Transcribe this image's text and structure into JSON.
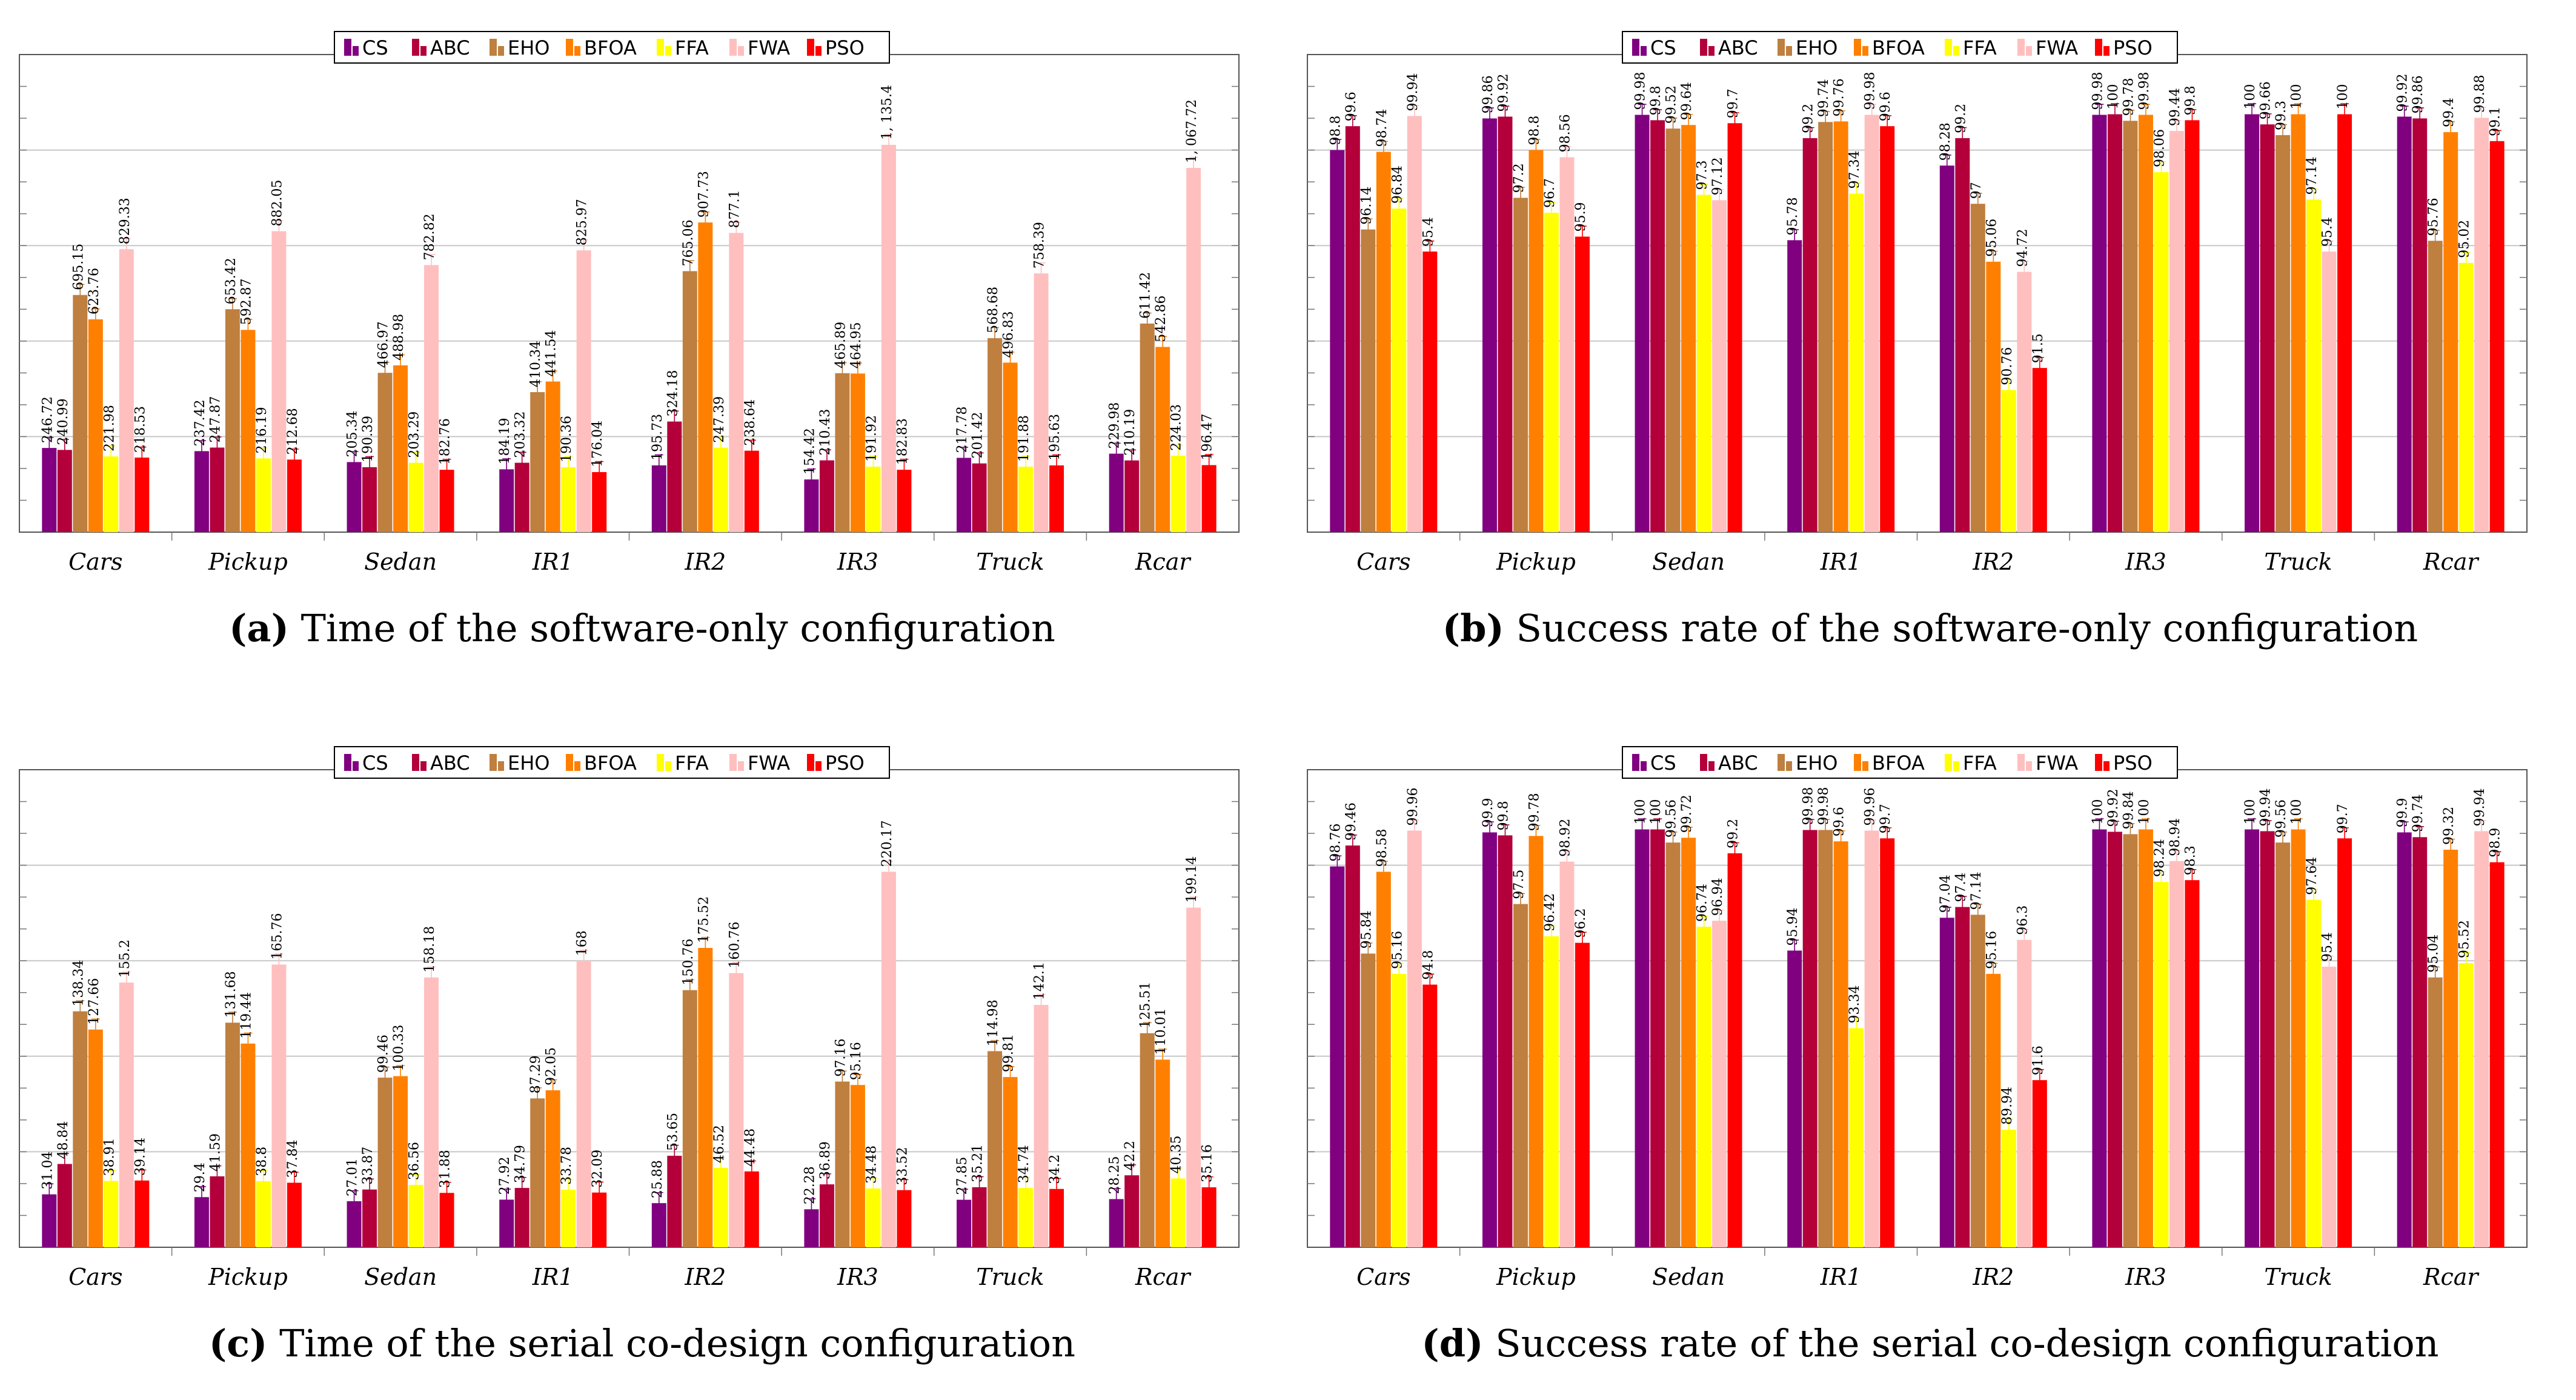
{
  "chart_data": [
    {
      "id": "a",
      "type": "bar",
      "caption_letter": "(a)",
      "caption_text": "Time of the software-only configuration",
      "categories": [
        "Cars",
        "Pickup",
        "Sedan",
        "IR1",
        "IR2",
        "IR3",
        "Truck",
        "Rcar"
      ],
      "ylim": [
        0,
        1400
      ],
      "series": [
        {
          "name": "CS",
          "color": "#800080",
          "values": [
            246.72,
            237.42,
            205.34,
            184.19,
            195.73,
            154.42,
            217.78,
            229.98
          ],
          "labels": [
            "246.72",
            "237.42",
            "205.34",
            "184.19",
            "195.73",
            "154.42",
            "217.78",
            "229.98"
          ]
        },
        {
          "name": "ABC",
          "color": "#b3003b",
          "values": [
            240.99,
            247.87,
            190.39,
            203.32,
            324.18,
            210.43,
            201.42,
            210.19
          ],
          "labels": [
            "240.99",
            "247.87",
            "190.39",
            "203.32",
            "324.18",
            "210.43",
            "201.42",
            "210.19"
          ]
        },
        {
          "name": "EHO",
          "color": "#bf7f3f",
          "values": [
            695.15,
            653.42,
            466.97,
            410.34,
            765.06,
            465.89,
            568.68,
            611.42
          ],
          "labels": [
            "695.15",
            "653.42",
            "466.97",
            "410.34",
            "765.06",
            "465.89",
            "568.68",
            "611.42"
          ]
        },
        {
          "name": "BFOA",
          "color": "#ff8000",
          "values": [
            623.76,
            592.87,
            488.98,
            441.54,
            907.73,
            464.95,
            496.83,
            542.86
          ],
          "labels": [
            "623.76",
            "592.87",
            "488.98",
            "441.54",
            "907.73",
            "464.95",
            "496.83",
            "542.86"
          ]
        },
        {
          "name": "FFA",
          "color": "#ffff00",
          "values": [
            221.98,
            216.19,
            203.29,
            190.36,
            247.39,
            191.92,
            191.88,
            224.03
          ],
          "labels": [
            "221.98",
            "216.19",
            "203.29",
            "190.36",
            "247.39",
            "191.92",
            "191.88",
            "224.03"
          ]
        },
        {
          "name": "FWA",
          "color": "#ffbfbf",
          "values": [
            829.33,
            882.05,
            782.82,
            825.97,
            877.1,
            1135.4,
            758.39,
            1067.72
          ],
          "labels": [
            "829.33",
            "882.05",
            "782.82",
            "825.97",
            "877.1",
            "1, 135.4",
            "758.39",
            "1, 067.72"
          ]
        },
        {
          "name": "PSO",
          "color": "#ff0000",
          "values": [
            218.53,
            212.68,
            182.76,
            176.04,
            238.64,
            182.83,
            195.63,
            196.47
          ],
          "labels": [
            "218.53",
            "212.68",
            "182.76",
            "176.04",
            "238.64",
            "182.83",
            "195.63",
            "196.47"
          ]
        }
      ]
    },
    {
      "id": "b",
      "type": "bar",
      "caption_letter": "(b)",
      "caption_text": "Success rate of the software-only configuration",
      "categories": [
        "Cars",
        "Pickup",
        "Sedan",
        "IR1",
        "IR2",
        "IR3",
        "Truck",
        "Rcar"
      ],
      "ylim": [
        86,
        102
      ],
      "series": [
        {
          "name": "CS",
          "color": "#800080",
          "values": [
            98.8,
            99.86,
            99.98,
            95.78,
            98.28,
            99.98,
            100,
            99.92
          ],
          "labels": [
            "98.8",
            "99.86",
            "99.98",
            "95.78",
            "98.28",
            "99.98",
            "100",
            "99.92"
          ]
        },
        {
          "name": "ABC",
          "color": "#b3003b",
          "values": [
            99.6,
            99.92,
            99.8,
            99.2,
            99.2,
            100,
            99.66,
            99.86
          ],
          "labels": [
            "99.6",
            "99.92",
            "99.8",
            "99.2",
            "99.2",
            "100",
            "99.66",
            "99.86"
          ]
        },
        {
          "name": "EHO",
          "color": "#bf7f3f",
          "values": [
            96.14,
            97.2,
            99.52,
            99.74,
            97,
            99.78,
            99.3,
            95.76
          ],
          "labels": [
            "96.14",
            "97.2",
            "99.52",
            "99.74",
            "97",
            "99.78",
            "99.3",
            "95.76"
          ]
        },
        {
          "name": "BFOA",
          "color": "#ff8000",
          "values": [
            98.74,
            98.8,
            99.64,
            99.76,
            95.06,
            99.98,
            100,
            99.4
          ],
          "labels": [
            "98.74",
            "98.8",
            "99.64",
            "99.76",
            "95.06",
            "99.98",
            "100",
            "99.4"
          ]
        },
        {
          "name": "FFA",
          "color": "#ffff00",
          "values": [
            96.84,
            96.7,
            97.3,
            97.34,
            90.76,
            98.06,
            97.14,
            95.02
          ],
          "labels": [
            "96.84",
            "96.7",
            "97.3",
            "97.34",
            "90.76",
            "98.06",
            "97.14",
            "95.02"
          ]
        },
        {
          "name": "FWA",
          "color": "#ffbfbf",
          "values": [
            99.94,
            98.56,
            97.12,
            99.98,
            94.72,
            99.44,
            95.4,
            99.88
          ],
          "labels": [
            "99.94",
            "98.56",
            "97.12",
            "99.98",
            "94.72",
            "99.44",
            "95.4",
            "99.88"
          ]
        },
        {
          "name": "PSO",
          "color": "#ff0000",
          "values": [
            95.4,
            95.9,
            99.7,
            99.6,
            91.5,
            99.8,
            100,
            99.1
          ],
          "labels": [
            "95.4",
            "95.9",
            "99.7",
            "99.6",
            "91.5",
            "99.8",
            "100",
            "99.1"
          ]
        }
      ]
    },
    {
      "id": "c",
      "type": "bar",
      "caption_letter": "(c)",
      "caption_text": "Time of the serial co-design configuration",
      "categories": [
        "Cars",
        "Pickup",
        "Sedan",
        "IR1",
        "IR2",
        "IR3",
        "Truck",
        "Rcar"
      ],
      "ylim": [
        0,
        280
      ],
      "series": [
        {
          "name": "CS",
          "color": "#800080",
          "values": [
            31.04,
            29.4,
            27.01,
            27.92,
            25.88,
            22.28,
            27.85,
            28.25
          ],
          "labels": [
            "31.04",
            "29.4",
            "27.01",
            "27.92",
            "25.88",
            "22.28",
            "27.85",
            "28.25"
          ]
        },
        {
          "name": "ABC",
          "color": "#b3003b",
          "values": [
            48.84,
            41.59,
            33.87,
            34.79,
            53.65,
            36.89,
            35.21,
            42.2
          ],
          "labels": [
            "48.84",
            "41.59",
            "33.87",
            "34.79",
            "53.65",
            "36.89",
            "35.21",
            "42.2"
          ]
        },
        {
          "name": "EHO",
          "color": "#bf7f3f",
          "values": [
            138.34,
            131.68,
            99.46,
            87.29,
            150.76,
            97.16,
            114.98,
            125.51
          ],
          "labels": [
            "138.34",
            "131.68",
            "99.46",
            "87.29",
            "150.76",
            "97.16",
            "114.98",
            "125.51"
          ]
        },
        {
          "name": "BFOA",
          "color": "#ff8000",
          "values": [
            127.66,
            119.44,
            100.33,
            92.05,
            175.52,
            95.16,
            99.81,
            110.01
          ],
          "labels": [
            "127.66",
            "119.44",
            "100.33",
            "92.05",
            "175.52",
            "95.16",
            "99.81",
            "110.01"
          ]
        },
        {
          "name": "FFA",
          "color": "#ffff00",
          "values": [
            38.91,
            38.8,
            36.56,
            33.78,
            46.52,
            34.48,
            34.74,
            40.35
          ],
          "labels": [
            "38.91",
            "38.8",
            "36.56",
            "33.78",
            "46.52",
            "34.48",
            "34.74",
            "40.35"
          ]
        },
        {
          "name": "FWA",
          "color": "#ffbfbf",
          "values": [
            155.2,
            165.76,
            158.18,
            168,
            160.76,
            220.17,
            142.1,
            199.14
          ],
          "labels": [
            "155.2",
            "165.76",
            "158.18",
            "168",
            "160.76",
            "220.17",
            "142.1",
            "199.14"
          ]
        },
        {
          "name": "PSO",
          "color": "#ff0000",
          "values": [
            39.14,
            37.84,
            31.88,
            32.09,
            44.48,
            33.52,
            34.2,
            35.16
          ],
          "labels": [
            "39.14",
            "37.84",
            "31.88",
            "32.09",
            "44.48",
            "33.52",
            "34.2",
            "35.16"
          ]
        }
      ]
    },
    {
      "id": "d",
      "type": "bar",
      "caption_letter": "(d)",
      "caption_text": "Success rate of the serial co-design configuration",
      "categories": [
        "Cars",
        "Pickup",
        "Sedan",
        "IR1",
        "IR2",
        "IR3",
        "Truck",
        "Rcar"
      ],
      "ylim": [
        86,
        102
      ],
      "series": [
        {
          "name": "CS",
          "color": "#800080",
          "values": [
            98.76,
            99.9,
            100,
            95.94,
            97.04,
            100,
            100,
            99.9
          ],
          "labels": [
            "98.76",
            "99.9",
            "100",
            "95.94",
            "97.04",
            "100",
            "100",
            "99.9"
          ]
        },
        {
          "name": "ABC",
          "color": "#b3003b",
          "values": [
            99.46,
            99.8,
            100,
            99.98,
            97.4,
            99.92,
            99.94,
            99.74
          ],
          "labels": [
            "99.46",
            "99.8",
            "100",
            "99.98",
            "97.4",
            "99.92",
            "99.94",
            "99.74"
          ]
        },
        {
          "name": "EHO",
          "color": "#bf7f3f",
          "values": [
            95.84,
            97.5,
            99.56,
            99.98,
            97.14,
            99.84,
            99.56,
            95.04
          ],
          "labels": [
            "95.84",
            "97.5",
            "99.56",
            "99.98",
            "97.14",
            "99.84",
            "99.56",
            "95.04"
          ]
        },
        {
          "name": "BFOA",
          "color": "#ff8000",
          "values": [
            98.58,
            99.78,
            99.72,
            99.6,
            95.16,
            100,
            100,
            99.32
          ],
          "labels": [
            "98.58",
            "99.78",
            "99.72",
            "99.6",
            "95.16",
            "100",
            "100",
            "99.32"
          ]
        },
        {
          "name": "FFA",
          "color": "#ffff00",
          "values": [
            95.16,
            96.42,
            96.74,
            93.34,
            89.94,
            98.24,
            97.64,
            95.52
          ],
          "labels": [
            "95.16",
            "96.42",
            "96.74",
            "93.34",
            "89.94",
            "98.24",
            "97.64",
            "95.52"
          ]
        },
        {
          "name": "FWA",
          "color": "#ffbfbf",
          "values": [
            99.96,
            98.92,
            96.94,
            99.96,
            96.3,
            98.94,
            95.4,
            99.94
          ],
          "labels": [
            "99.96",
            "98.92",
            "96.94",
            "99.96",
            "96.3",
            "98.94",
            "95.4",
            "99.94"
          ]
        },
        {
          "name": "PSO",
          "color": "#ff0000",
          "values": [
            94.8,
            96.2,
            99.2,
            99.7,
            91.6,
            98.3,
            99.7,
            98.9
          ],
          "labels": [
            "94.8",
            "96.2",
            "99.2",
            "99.7",
            "91.6",
            "98.3",
            "99.7",
            "98.9"
          ]
        }
      ]
    }
  ]
}
